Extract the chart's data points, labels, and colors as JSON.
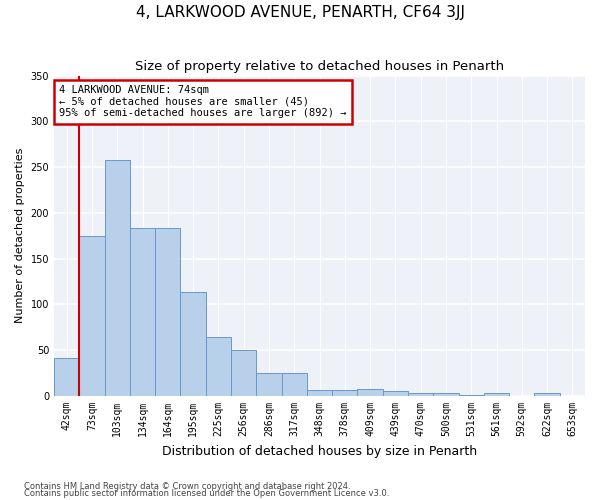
{
  "title": "4, LARKWOOD AVENUE, PENARTH, CF64 3JJ",
  "subtitle": "Size of property relative to detached houses in Penarth",
  "xlabel": "Distribution of detached houses by size in Penarth",
  "ylabel": "Number of detached properties",
  "bar_values": [
    42,
    175,
    258,
    183,
    184,
    114,
    64,
    50,
    25,
    25,
    7,
    7,
    8,
    5,
    3,
    3,
    1,
    3,
    0,
    3
  ],
  "bar_labels": [
    "42sqm",
    "73sqm",
    "103sqm",
    "134sqm",
    "164sqm",
    "195sqm",
    "225sqm",
    "256sqm",
    "286sqm",
    "317sqm",
    "348sqm",
    "378sqm",
    "409sqm",
    "439sqm",
    "470sqm",
    "500sqm",
    "531sqm",
    "561sqm",
    "592sqm",
    "622sqm",
    "653sqm"
  ],
  "bar_color": "#b8d0ea",
  "bar_edge_color": "#6699cc",
  "annotation_line1": "4 LARKWOOD AVENUE: 74sqm",
  "annotation_line2": "← 5% of detached houses are smaller (45)",
  "annotation_line3": "95% of semi-detached houses are larger (892) →",
  "annotation_box_color": "#cc0000",
  "vline_color": "#cc0000",
  "ylim": [
    0,
    350
  ],
  "yticks": [
    0,
    50,
    100,
    150,
    200,
    250,
    300,
    350
  ],
  "title_fontsize": 11,
  "subtitle_fontsize": 9.5,
  "xlabel_fontsize": 9,
  "ylabel_fontsize": 8,
  "tick_fontsize": 7,
  "annotation_fontsize": 7.5,
  "footer_line1": "Contains HM Land Registry data © Crown copyright and database right 2024.",
  "footer_line2": "Contains public sector information licensed under the Open Government Licence v3.0.",
  "bg_color": "#eef2f8",
  "grid_color": "#ffffff"
}
